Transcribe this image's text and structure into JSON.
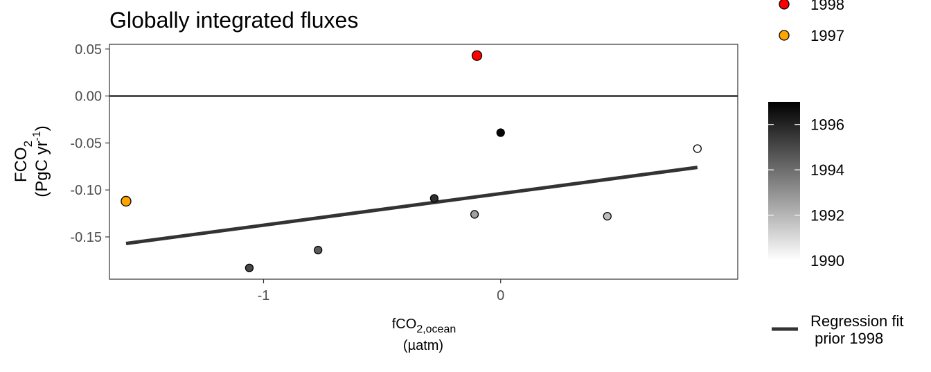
{
  "chart_data": {
    "type": "scatter",
    "title": "Globally integrated fluxes",
    "xlabel": {
      "main": "fCO",
      "sub": "2,ocean",
      "unit": "(µatm)"
    },
    "ylabel": {
      "main": "FCO",
      "sub": "2",
      "unit_pre": "(PgC yr",
      "unit_sup": "-1",
      "unit_post": ")"
    },
    "xlim": [
      -1.65,
      1.0
    ],
    "ylim": [
      -0.195,
      0.055
    ],
    "x_ticks": [
      {
        "value": -1,
        "label": "-1"
      },
      {
        "value": 0,
        "label": "0"
      }
    ],
    "y_ticks": [
      {
        "value": 0.05,
        "label": "0.05"
      },
      {
        "value": 0.0,
        "label": "0.00"
      },
      {
        "value": -0.05,
        "label": "-0.05"
      },
      {
        "value": -0.1,
        "label": "-0.10"
      },
      {
        "value": -0.15,
        "label": "-0.15"
      }
    ],
    "hline_y": 0.0,
    "points": [
      {
        "x": -1.58,
        "y": -0.112,
        "year": 1997,
        "color": "#FFA500"
      },
      {
        "x": -0.1,
        "y": 0.043,
        "year": 1998,
        "color": "#FF0000"
      },
      {
        "x": -1.06,
        "y": -0.183,
        "year": 1995,
        "color": null
      },
      {
        "x": -0.77,
        "y": -0.164,
        "year": 1994.5,
        "color": null
      },
      {
        "x": -0.28,
        "y": -0.109,
        "year": 1995.7,
        "color": null
      },
      {
        "x": -0.11,
        "y": -0.126,
        "year": 1992.6,
        "color": null
      },
      {
        "x": 0.0,
        "y": -0.039,
        "year": 1996.8,
        "color": null
      },
      {
        "x": 0.45,
        "y": -0.128,
        "year": 1991.8,
        "color": null
      },
      {
        "x": 0.83,
        "y": -0.056,
        "year": 1990,
        "color": null
      }
    ],
    "regression": {
      "x": [
        -1.58,
        0.83
      ],
      "y": [
        -0.157,
        -0.076
      ],
      "color": "#333333"
    },
    "legend": {
      "highlight": [
        {
          "label": "1998",
          "color": "#FF0000"
        },
        {
          "label": "1997",
          "color": "#FFA500"
        }
      ],
      "gradient": {
        "min": 1990,
        "max": 1997,
        "low_color": "#ffffff",
        "high_color": "#000000",
        "ticks": [
          {
            "value": 1996,
            "label": "1996"
          },
          {
            "value": 1994,
            "label": "1994"
          },
          {
            "value": 1992,
            "label": "1992"
          },
          {
            "value": 1990,
            "label": "1990"
          }
        ]
      },
      "regression_label": [
        "Regression fit",
        " prior 1998"
      ]
    }
  }
}
